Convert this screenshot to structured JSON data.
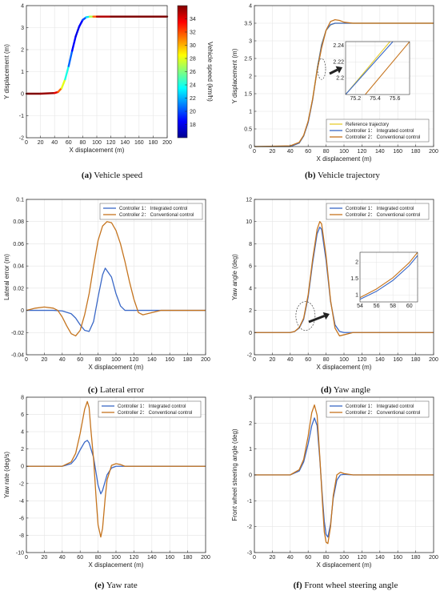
{
  "colors": {
    "integrated": "#3a68c7",
    "conventional": "#c5741e",
    "reference": "#e6cc2e",
    "grid": "#e5e5e5",
    "axis": "#333333"
  },
  "chart_data": [
    {
      "id": "a",
      "type": "line",
      "caption_label": "(a)",
      "caption_text": "Vehicle speed",
      "xlabel": "X displacement (m)",
      "ylabel": "Y displacement (m)",
      "xlim": [
        0,
        200
      ],
      "ylim": [
        -2,
        4
      ],
      "xticks": [
        0,
        20,
        40,
        60,
        80,
        100,
        120,
        140,
        160,
        180,
        200
      ],
      "yticks": [
        -2,
        -1,
        0,
        1,
        2,
        3,
        4
      ],
      "grid": true,
      "colorbar": {
        "label": "Vehicle speed (km/h)",
        "range": [
          16,
          36
        ],
        "ticks": [
          18,
          20,
          22,
          24,
          26,
          28,
          30,
          32,
          34
        ],
        "colormap": "jet"
      },
      "series": [
        {
          "x": [
            0,
            20,
            40,
            45,
            50,
            55,
            60,
            65,
            70,
            75,
            80,
            85,
            90,
            95,
            100,
            120,
            150,
            200
          ],
          "y": [
            0,
            0,
            0.03,
            0.08,
            0.25,
            0.65,
            1.25,
            1.95,
            2.6,
            3.05,
            3.35,
            3.47,
            3.5,
            3.5,
            3.5,
            3.5,
            3.5,
            3.5
          ],
          "speed": [
            36,
            36,
            35,
            33,
            30,
            26,
            22,
            19,
            18,
            18,
            19,
            21,
            25,
            29,
            34,
            36,
            36,
            36
          ]
        }
      ]
    },
    {
      "id": "b",
      "type": "line",
      "caption_label": "(b)",
      "caption_text": "Vehicle trajectory",
      "xlabel": "X displacement (m)",
      "ylabel": "Y displacement (m)",
      "xlim": [
        0,
        200
      ],
      "ylim": [
        0,
        4
      ],
      "xticks": [
        0,
        20,
        40,
        60,
        80,
        100,
        120,
        140,
        160,
        180,
        200
      ],
      "yticks": [
        0,
        0.5,
        1,
        1.5,
        2,
        2.5,
        3,
        3.5,
        4
      ],
      "grid": true,
      "legend_position": "bottom-right",
      "series": [
        {
          "name": "Reference trajectory",
          "color_key": "reference",
          "x": [
            0,
            40,
            50,
            55,
            60,
            65,
            70,
            75,
            80,
            85,
            90,
            95,
            100,
            200
          ],
          "y": [
            0,
            0,
            0.1,
            0.3,
            0.7,
            1.35,
            2.2,
            2.9,
            3.3,
            3.45,
            3.5,
            3.5,
            3.5,
            3.5
          ]
        },
        {
          "name": "Controller 1： Integrated control",
          "color_key": "integrated",
          "x": [
            0,
            40,
            50,
            55,
            60,
            65,
            70,
            75,
            80,
            85,
            90,
            95,
            100,
            200
          ],
          "y": [
            0,
            0,
            0.1,
            0.3,
            0.68,
            1.32,
            2.18,
            2.88,
            3.3,
            3.46,
            3.5,
            3.5,
            3.5,
            3.5
          ]
        },
        {
          "name": "Controller 2： Conventional control",
          "color_key": "conventional",
          "x": [
            0,
            40,
            50,
            55,
            60,
            65,
            70,
            75,
            80,
            85,
            90,
            95,
            100,
            110,
            120,
            200
          ],
          "y": [
            0,
            0.02,
            0.12,
            0.32,
            0.72,
            1.35,
            2.15,
            2.8,
            3.3,
            3.55,
            3.6,
            3.58,
            3.53,
            3.5,
            3.5,
            3.5
          ]
        }
      ],
      "inset": {
        "xlim": [
          75.1,
          75.75
        ],
        "ylim": [
          2.18,
          2.245
        ],
        "xticks": [
          75.2,
          75.4,
          75.6
        ],
        "yticks": [
          2.2,
          2.22,
          2.24
        ],
        "series": [
          {
            "color_key": "reference",
            "x": [
              75.1,
              75.55
            ],
            "y": [
              2.18,
              2.245
            ]
          },
          {
            "color_key": "integrated",
            "x": [
              75.1,
              75.58
            ],
            "y": [
              2.18,
              2.245
            ]
          },
          {
            "color_key": "conventional",
            "x": [
              75.3,
              75.75
            ],
            "y": [
              2.18,
              2.245
            ]
          }
        ]
      }
    },
    {
      "id": "c",
      "type": "line",
      "caption_label": "(c)",
      "caption_text": "Lateral error",
      "xlabel": "X displacement (m)",
      "ylabel": "Lateral error (m)",
      "xlim": [
        0,
        200
      ],
      "ylim": [
        -0.04,
        0.1
      ],
      "xticks": [
        0,
        20,
        40,
        60,
        80,
        100,
        120,
        140,
        160,
        180,
        200
      ],
      "yticks": [
        -0.04,
        -0.02,
        0,
        0.02,
        0.04,
        0.06,
        0.08,
        0.1
      ],
      "grid": true,
      "legend_position": "top-right",
      "series": [
        {
          "name": "Controller 1： Integrated control",
          "color_key": "integrated",
          "x": [
            0,
            30,
            40,
            50,
            55,
            60,
            65,
            70,
            75,
            80,
            85,
            88,
            95,
            100,
            105,
            110,
            115,
            200
          ],
          "y": [
            0,
            0,
            -0.0005,
            -0.003,
            -0.007,
            -0.013,
            -0.018,
            -0.019,
            -0.01,
            0.012,
            0.032,
            0.038,
            0.03,
            0.015,
            0.004,
            0,
            0,
            0
          ]
        },
        {
          "name": "Controller 2： Conventional control",
          "color_key": "conventional",
          "x": [
            0,
            10,
            20,
            30,
            35,
            40,
            45,
            50,
            55,
            60,
            65,
            70,
            75,
            80,
            85,
            90,
            95,
            100,
            105,
            110,
            115,
            120,
            125,
            130,
            140,
            150,
            200
          ],
          "y": [
            0,
            0.002,
            0.003,
            0.002,
            0,
            -0.006,
            -0.014,
            -0.021,
            -0.023,
            -0.018,
            -0.004,
            0.015,
            0.04,
            0.063,
            0.076,
            0.08,
            0.079,
            0.072,
            0.06,
            0.044,
            0.026,
            0.01,
            -0.002,
            -0.004,
            -0.002,
            0,
            0
          ]
        }
      ]
    },
    {
      "id": "d",
      "type": "line",
      "caption_label": "(d)",
      "caption_text": "Yaw angle",
      "xlabel": "X displacement (m)",
      "ylabel": "Yaw angle (deg)",
      "xlim": [
        0,
        200
      ],
      "ylim": [
        -2,
        12
      ],
      "xticks": [
        0,
        20,
        40,
        60,
        80,
        100,
        120,
        140,
        160,
        180,
        200
      ],
      "yticks": [
        -2,
        0,
        2,
        4,
        6,
        8,
        10,
        12
      ],
      "grid": true,
      "legend_position": "top-right",
      "series": [
        {
          "name": "Controller 1： Integrated control",
          "color_key": "integrated",
          "x": [
            0,
            40,
            45,
            50,
            55,
            60,
            65,
            70,
            73,
            75,
            80,
            85,
            90,
            95,
            100,
            110,
            200
          ],
          "y": [
            0,
            0,
            0.1,
            0.4,
            1.2,
            3.2,
            6.3,
            8.9,
            9.5,
            9.3,
            6.5,
            2.8,
            0.7,
            0.1,
            0,
            0,
            0
          ]
        },
        {
          "name": "Controller 2： Conventional control",
          "color_key": "conventional",
          "x": [
            0,
            40,
            45,
            50,
            55,
            60,
            65,
            70,
            73,
            75,
            80,
            85,
            90,
            95,
            100,
            110,
            120,
            200
          ],
          "y": [
            0,
            0,
            0.1,
            0.45,
            1.3,
            3.4,
            6.6,
            9.3,
            10.0,
            9.8,
            6.9,
            2.9,
            0.4,
            -0.3,
            -0.2,
            0,
            0,
            0
          ]
        }
      ],
      "inset": {
        "xlim": [
          54,
          61
        ],
        "ylim": [
          0.8,
          2.3
        ],
        "xticks": [
          54,
          56,
          58,
          60
        ],
        "yticks": [
          1,
          1.5,
          2
        ],
        "series": [
          {
            "color_key": "integrated",
            "x": [
              54,
              56,
              58,
              60,
              61
            ],
            "y": [
              0.88,
              1.12,
              1.45,
              1.9,
              2.2
            ]
          },
          {
            "color_key": "conventional",
            "x": [
              54,
              56,
              58,
              60,
              61
            ],
            "y": [
              0.93,
              1.19,
              1.53,
              1.99,
              2.3
            ]
          }
        ]
      }
    },
    {
      "id": "e",
      "type": "line",
      "caption_label": "(e)",
      "caption_text": "Yaw rate",
      "xlabel": "X displacement (m)",
      "ylabel": "Yaw rate (deg/s)",
      "xlim": [
        0,
        200
      ],
      "ylim": [
        -10,
        8
      ],
      "xticks": [
        0,
        20,
        40,
        60,
        80,
        100,
        120,
        140,
        160,
        180,
        200
      ],
      "yticks": [
        -10,
        -8,
        -6,
        -4,
        -2,
        0,
        2,
        4,
        6,
        8
      ],
      "grid": true,
      "legend_position": "top-right",
      "series": [
        {
          "name": "Controller 1： Integrated control",
          "color_key": "integrated",
          "x": [
            0,
            40,
            50,
            55,
            60,
            65,
            68,
            70,
            75,
            80,
            83,
            85,
            90,
            95,
            100,
            110,
            200
          ],
          "y": [
            0,
            0,
            0.3,
            0.9,
            1.9,
            2.8,
            3.0,
            2.7,
            1.0,
            -2.2,
            -3.2,
            -2.8,
            -1.0,
            -0.2,
            0,
            0,
            0
          ]
        },
        {
          "name": "Controller 2： Conventional control",
          "color_key": "conventional",
          "x": [
            0,
            40,
            50,
            55,
            60,
            65,
            68,
            70,
            72,
            75,
            78,
            80,
            83,
            85,
            88,
            90,
            95,
            100,
            105,
            110,
            200
          ],
          "y": [
            0,
            0,
            0.5,
            1.5,
            3.8,
            6.6,
            7.5,
            6.8,
            4.2,
            0.8,
            -4.0,
            -6.8,
            -8.2,
            -7.2,
            -3.6,
            -1.6,
            0.1,
            0.3,
            0.2,
            0,
            0
          ]
        }
      ]
    },
    {
      "id": "f",
      "type": "line",
      "caption_label": "(f)",
      "caption_text": "Front wheel steering angle",
      "xlabel": "X displacement (m)",
      "ylabel": "Front wheel steering angle (deg)",
      "xlim": [
        0,
        200
      ],
      "ylim": [
        -3,
        3
      ],
      "xticks": [
        0,
        20,
        40,
        60,
        80,
        100,
        120,
        140,
        160,
        180,
        200
      ],
      "yticks": [
        -3,
        -2,
        -1,
        0,
        1,
        2,
        3
      ],
      "grid": true,
      "legend_position": "top-right",
      "series": [
        {
          "name": "Controller 1： Integrated control",
          "color_key": "integrated",
          "x": [
            0,
            40,
            50,
            55,
            60,
            64,
            67,
            70,
            73,
            76,
            78,
            80,
            82,
            85,
            88,
            92,
            96,
            100,
            110,
            200
          ],
          "y": [
            0,
            0,
            0.15,
            0.5,
            1.2,
            1.9,
            2.2,
            1.9,
            0.6,
            -0.9,
            -1.8,
            -2.3,
            -2.4,
            -1.9,
            -0.9,
            -0.2,
            0,
            0.02,
            0,
            0
          ]
        },
        {
          "name": "Controller 2： Conventional control",
          "color_key": "conventional",
          "x": [
            0,
            40,
            50,
            55,
            60,
            64,
            67,
            70,
            73,
            76,
            78,
            80,
            82,
            85,
            88,
            92,
            96,
            100,
            110,
            200
          ],
          "y": [
            0,
            0,
            0.2,
            0.6,
            1.5,
            2.4,
            2.7,
            2.3,
            0.7,
            -1.1,
            -2.2,
            -2.6,
            -2.65,
            -2.0,
            -0.8,
            0.0,
            0.1,
            0.05,
            0,
            0
          ]
        }
      ]
    }
  ]
}
